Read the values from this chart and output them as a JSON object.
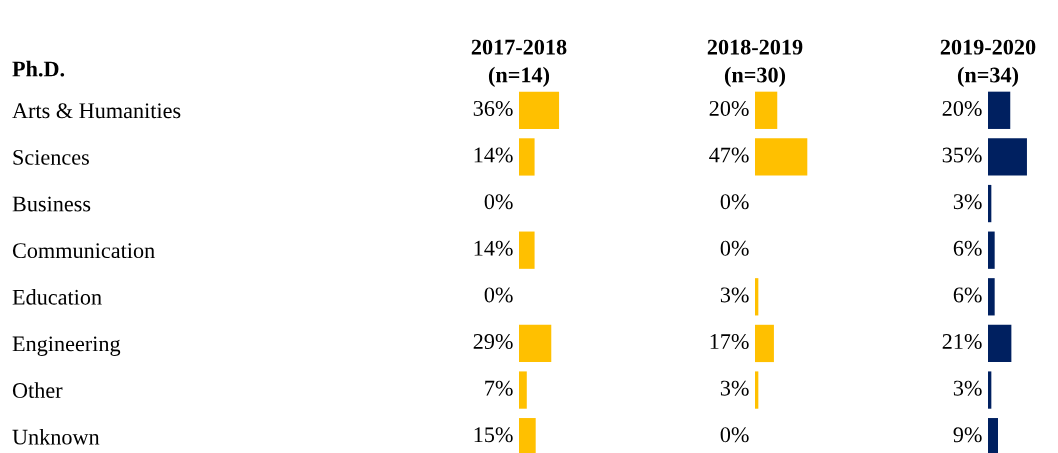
{
  "chart_data": [
    {
      "type": "bar",
      "orientation": "horizontal",
      "title": "2017-2018\n(n=14)",
      "annotations": [
        "Ph.D."
      ],
      "tick_labels": "y",
      "color": "#ffc000",
      "categories": [
        "Arts & Humanities",
        "Sciences",
        "Business",
        "Communication",
        "Education",
        "Engineering",
        "Other",
        "Unknown"
      ],
      "values": [
        36,
        14,
        0,
        14,
        0,
        29,
        7,
        15
      ],
      "value_labels": [
        "36%",
        "14%",
        "0%",
        "14%",
        "0%",
        "29%",
        "7%",
        "15%"
      ]
    },
    {
      "type": "bar",
      "orientation": "horizontal",
      "title": "2018-2019\n(n=30)",
      "tick_labels": false,
      "color": "#ffc000",
      "categories": [
        null,
        null,
        null,
        null,
        null,
        null,
        null,
        null
      ],
      "values": [
        20,
        47,
        0,
        0,
        3,
        17,
        3,
        0
      ],
      "value_labels": [
        "20%",
        "47%",
        "0%",
        "0%",
        "3%",
        "17%",
        "3%",
        "0%"
      ]
    },
    {
      "type": "bar",
      "orientation": "horizontal",
      "title": "2019-2020\n(n=34)",
      "tick_labels": false,
      "color": "#002060",
      "categories": [
        null,
        null,
        null,
        null,
        null,
        null,
        null,
        null
      ],
      "values": [
        20,
        35,
        3,
        6,
        6,
        21,
        3,
        9
      ],
      "value_labels": [
        "20%",
        "35%",
        "3%",
        "6%",
        "6%",
        "21%",
        "3%",
        "9%"
      ]
    }
  ]
}
